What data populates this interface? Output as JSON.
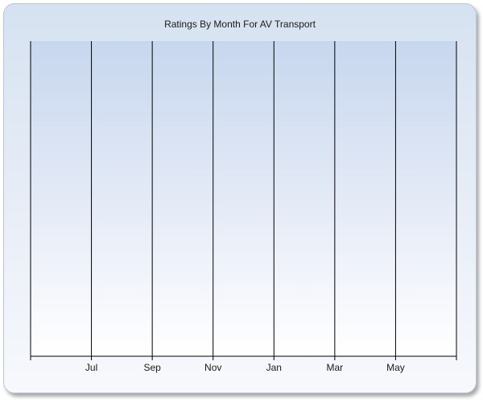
{
  "chart_data": {
    "type": "bar",
    "title": "Ratings By Month For AV Transport",
    "xlabel": "",
    "ylabel": "",
    "categories": [
      "Jul",
      "Sep",
      "Nov",
      "Jan",
      "Mar",
      "May"
    ],
    "series": [],
    "grid": "vertical",
    "legend": "none"
  }
}
